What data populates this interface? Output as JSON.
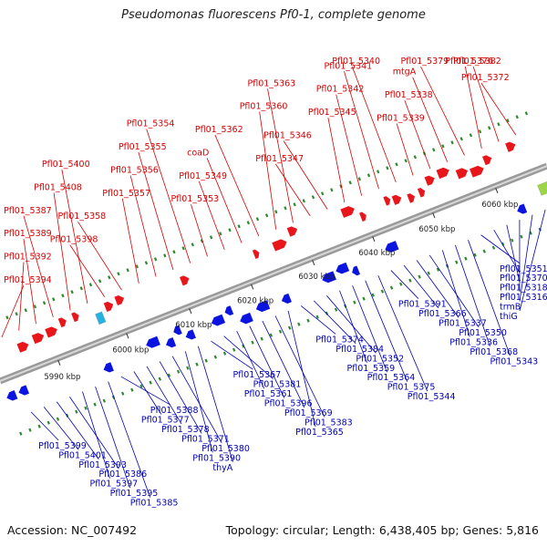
{
  "title": "Pseudomonas fluorescens Pf0-1, complete genome",
  "footer": {
    "accession": "Accession: NC_007492",
    "summary": "Topology: circular; Length: 6,438,405 bp; Genes: 5,816"
  },
  "colors": {
    "forward": "#e8161b",
    "reverse": "#0a13e0",
    "backbone": "#9a9a9a",
    "tick": "#2f8a2f",
    "label_forward": "#d40000",
    "label_reverse": "#0000b4"
  },
  "axis_ticks": [
    {
      "label": "5990 kbp",
      "frac": 0.105
    },
    {
      "label": "6000 kbp",
      "frac": 0.23
    },
    {
      "label": "6010 kbp",
      "frac": 0.345
    },
    {
      "label": "6020 kbp",
      "frac": 0.458
    },
    {
      "label": "6030 kbp",
      "frac": 0.57
    },
    {
      "label": "6040 kbp",
      "frac": 0.68
    },
    {
      "label": "6050 kbp",
      "frac": 0.79
    },
    {
      "label": "6060 kbp",
      "frac": 0.905
    }
  ],
  "labels_top": [
    "Pfl01_5394",
    "Pfl01_5392",
    "Pfl01_5389",
    "Pfl01_5387",
    "Pfl01_5408",
    "Pfl01_5400",
    "Pfl01_5398",
    "Pfl01_5358",
    "Pfl01_5357",
    "Pfl01_5356",
    "Pfl01_5355",
    "Pfl01_5354",
    "Pfl01_5353",
    "Pfl01_5349",
    "coaD",
    "Pfl01_5362",
    "Pfl01_5360",
    "Pfl01_5363",
    "Pfl01_5347",
    "Pfl01_5346",
    "Pfl01_5345",
    "Pfl01_5342",
    "Pfl01_5341",
    "Pfl01_5340",
    "Pfl01_5339",
    "Pfl01_5338",
    "mtgA",
    "Pfl01_5379",
    "Pfl01_5376",
    "Pfl01_5382",
    "Pfl01_5372"
  ],
  "labels_bottom": [
    "Pfl01_5399",
    "Pfl01_5401",
    "Pfl01_5393",
    "Pfl01_5386",
    "Pfl01_5397",
    "Pfl01_5395",
    "Pfl01_5385",
    "Pfl01_5388",
    "Pfl01_5377",
    "Pfl01_5378",
    "Pfl01_5371",
    "Pfl01_5380",
    "Pfl01_5390",
    "thyA",
    "Pfl01_5367",
    "Pfl01_5381",
    "Pfl01_5361",
    "Pfl01_5396",
    "Pfl01_5369",
    "Pfl01_5383",
    "Pfl01_5365",
    "Pfl01_5374",
    "Pfl01_5384",
    "Pfl01_5352",
    "Pfl01_5359",
    "Pfl01_5364",
    "Pfl01_5375",
    "Pfl01_5344",
    "Pfl01_5391",
    "Pfl01_5366",
    "Pfl01_5337",
    "Pfl01_5350",
    "Pfl01_5336",
    "Pfl01_5368",
    "Pfl01_5343",
    "Pfl01_5351",
    "Pfl01_5370",
    "Pfl01_5318",
    "Pfl01_5316",
    "trmB",
    "thiG"
  ]
}
